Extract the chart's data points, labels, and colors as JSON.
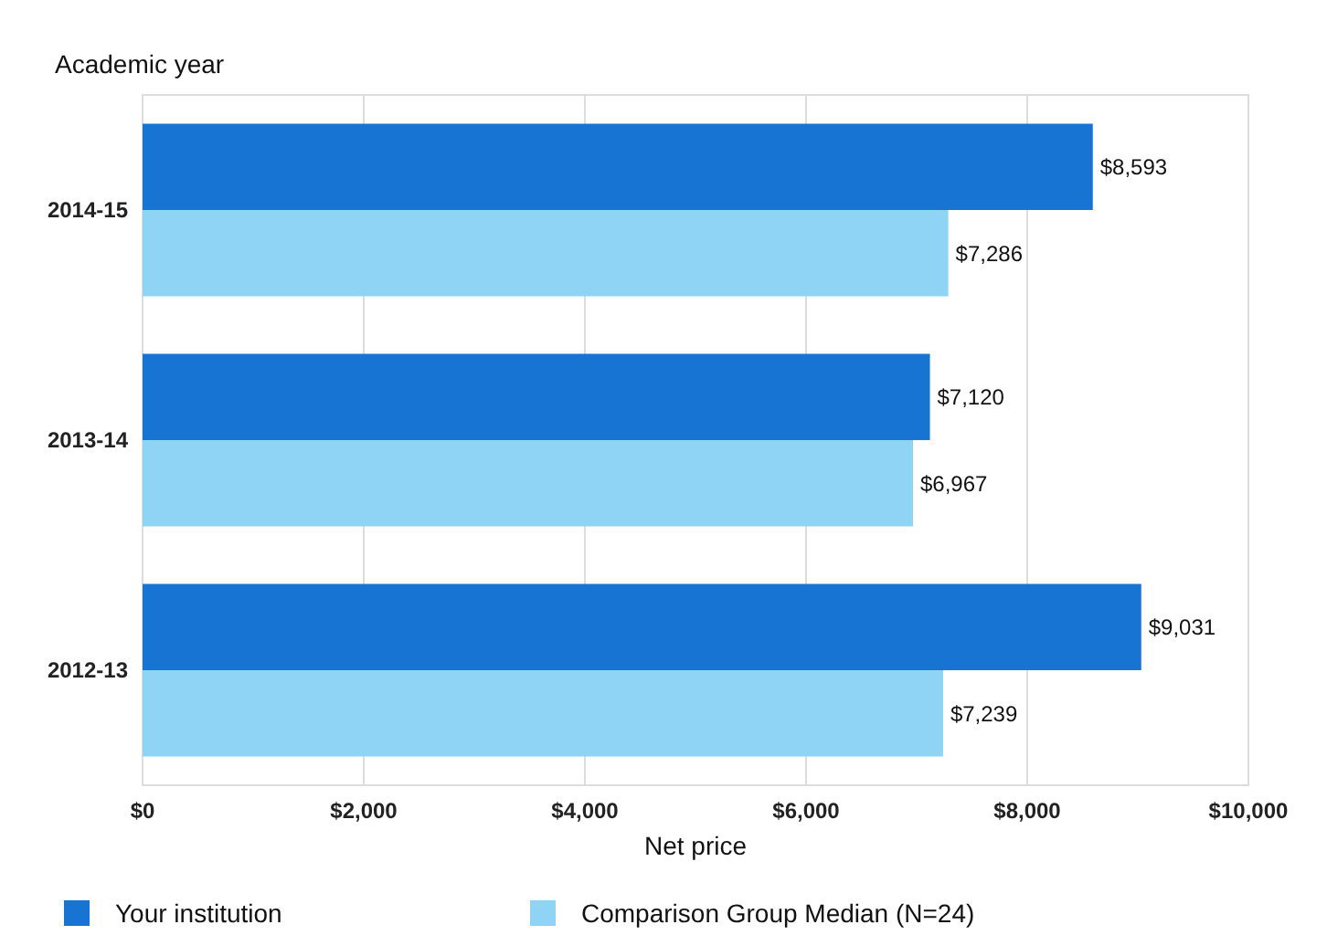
{
  "chart_data": {
    "type": "bar",
    "orientation": "horizontal",
    "ylabel": "Academic year",
    "xlabel": "Net price",
    "categories": [
      "2014-15",
      "2013-14",
      "2012-13"
    ],
    "series": [
      {
        "name": "Your institution",
        "color": "#1874d2",
        "values": [
          8593,
          7120,
          9031
        ],
        "value_labels": [
          "$8,593",
          "$7,120",
          "$9,031"
        ]
      },
      {
        "name": "Comparison Group Median (N=24)",
        "color": "#8fd3f5",
        "values": [
          7286,
          6967,
          7239
        ],
        "value_labels": [
          "$7,286",
          "$6,967",
          "$7,239"
        ]
      }
    ],
    "xlim": [
      0,
      10000
    ],
    "xticks": [
      {
        "value": 0,
        "label": "$0"
      },
      {
        "value": 2000,
        "label": "$2,000"
      },
      {
        "value": 4000,
        "label": "$4,000"
      },
      {
        "value": 6000,
        "label": "$6,000"
      },
      {
        "value": 8000,
        "label": "$8,000"
      },
      {
        "value": 10000,
        "label": "$10,000"
      }
    ],
    "grid": "x",
    "legend": "bottom"
  }
}
